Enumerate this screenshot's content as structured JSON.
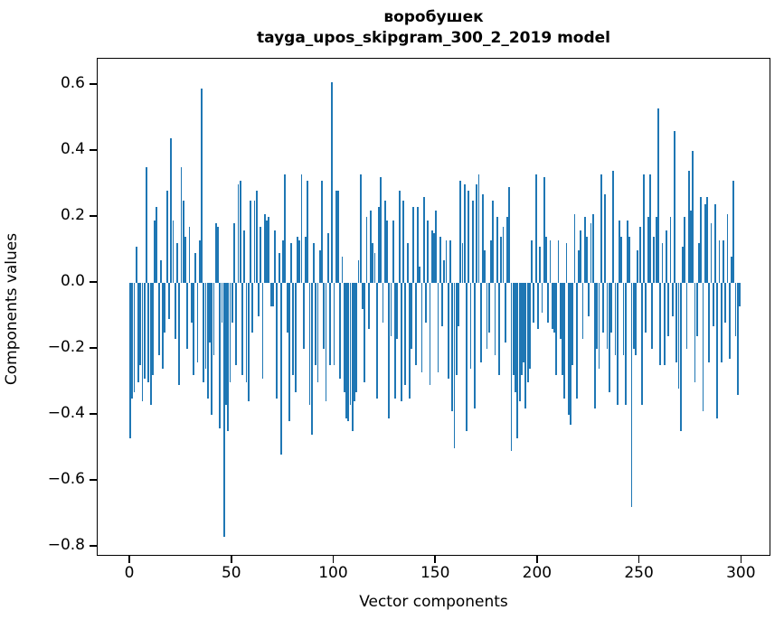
{
  "title": {
    "line1": "воробушек",
    "line2": "tayga_upos_skipgram_300_2_2019 model"
  },
  "axes": {
    "xlabel": "Vector components",
    "ylabel": "Components values",
    "x_tick_labels": [
      "0",
      "50",
      "100",
      "150",
      "200",
      "250",
      "300"
    ],
    "y_tick_labels": [
      "0.6",
      "0.4",
      "0.2",
      "0.0",
      "−0.2",
      "−0.4",
      "−0.6",
      "−0.8"
    ]
  },
  "chart_data": {
    "type": "bar",
    "title": "воробушек\ntayga_upos_skipgram_300_2_2019 model",
    "xlabel": "Vector components",
    "ylabel": "Components values",
    "bar_color": "#1f77b4",
    "n_components": 300,
    "xlim": [
      -16,
      314.5
    ],
    "ylim": [
      -0.83,
      0.68
    ],
    "x_ticks": [
      0,
      50,
      100,
      150,
      200,
      250,
      300
    ],
    "y_ticks": [
      0.6,
      0.4,
      0.2,
      0.0,
      -0.2,
      -0.4,
      -0.6,
      -0.8
    ],
    "grid": false,
    "legend": false,
    "values": [
      -0.47,
      -0.35,
      -0.33,
      0.11,
      -0.3,
      -0.25,
      -0.36,
      -0.29,
      0.35,
      -0.3,
      -0.37,
      -0.28,
      0.19,
      0.23,
      -0.22,
      0.07,
      -0.26,
      -0.15,
      0.28,
      -0.11,
      0.44,
      0.19,
      -0.17,
      0.12,
      -0.31,
      0.35,
      0.25,
      0.14,
      -0.2,
      0.17,
      -0.12,
      -0.28,
      0.09,
      -0.24,
      0.13,
      0.59,
      -0.3,
      -0.26,
      -0.35,
      -0.18,
      -0.4,
      -0.22,
      0.18,
      0.17,
      -0.44,
      -0.12,
      -0.77,
      -0.37,
      -0.45,
      -0.3,
      -0.12,
      0.18,
      -0.25,
      0.3,
      0.31,
      -0.28,
      0.16,
      -0.3,
      -0.36,
      0.25,
      -0.15,
      0.25,
      0.28,
      -0.1,
      0.17,
      -0.29,
      0.21,
      0.19,
      0.2,
      -0.07,
      -0.07,
      0.16,
      -0.35,
      0.09,
      -0.52,
      0.13,
      0.33,
      -0.15,
      -0.42,
      0.12,
      -0.28,
      -0.33,
      0.14,
      0.13,
      0.33,
      -0.2,
      0.14,
      0.31,
      -0.37,
      -0.46,
      0.12,
      -0.25,
      -0.3,
      0.1,
      0.31,
      -0.2,
      -0.36,
      0.15,
      -0.25,
      0.61,
      -0.25,
      0.28,
      0.28,
      -0.29,
      0.08,
      -0.33,
      -0.41,
      -0.42,
      -0.37,
      -0.45,
      -0.36,
      -0.33,
      0.07,
      0.33,
      -0.08,
      -0.3,
      0.2,
      -0.14,
      0.22,
      0.12,
      0.09,
      -0.35,
      0.23,
      0.32,
      -0.12,
      0.25,
      0.19,
      -0.41,
      -0.16,
      0.19,
      -0.35,
      -0.17,
      0.28,
      -0.36,
      0.25,
      -0.31,
      0.12,
      -0.35,
      -0.2,
      0.23,
      -0.25,
      0.23,
      0.05,
      -0.27,
      0.26,
      -0.12,
      0.19,
      -0.31,
      0.16,
      0.15,
      0.22,
      -0.27,
      0.14,
      -0.13,
      0.07,
      0.13,
      -0.29,
      0.13,
      -0.39,
      -0.5,
      -0.28,
      -0.13,
      0.31,
      0.12,
      0.3,
      -0.45,
      0.28,
      -0.26,
      0.25,
      -0.38,
      0.3,
      0.33,
      -0.24,
      0.27,
      0.1,
      -0.2,
      -0.15,
      0.13,
      0.25,
      -0.22,
      0.2,
      -0.28,
      0.14,
      0.17,
      -0.18,
      0.2,
      0.29,
      -0.51,
      -0.28,
      -0.33,
      -0.47,
      -0.36,
      -0.28,
      -0.24,
      -0.38,
      -0.3,
      -0.26,
      0.13,
      -0.12,
      0.33,
      -0.14,
      0.11,
      -0.09,
      0.32,
      0.14,
      -0.12,
      0.13,
      -0.14,
      -0.15,
      -0.28,
      0.13,
      -0.17,
      -0.28,
      -0.35,
      0.12,
      -0.4,
      -0.43,
      -0.25,
      0.21,
      -0.35,
      0.1,
      0.16,
      -0.17,
      0.2,
      0.14,
      -0.1,
      0.18,
      0.21,
      -0.38,
      -0.2,
      -0.26,
      0.33,
      -0.15,
      0.27,
      -0.2,
      -0.33,
      -0.15,
      0.34,
      -0.22,
      -0.37,
      0.19,
      0.14,
      -0.22,
      -0.37,
      0.19,
      0.14,
      -0.68,
      -0.2,
      -0.22,
      0.1,
      0.17,
      -0.37,
      0.33,
      -0.15,
      0.2,
      0.33,
      -0.2,
      0.14,
      0.2,
      0.53,
      -0.25,
      0.12,
      -0.25,
      0.16,
      -0.16,
      0.2,
      -0.1,
      0.46,
      -0.24,
      -0.32,
      -0.45,
      0.11,
      0.2,
      -0.2,
      0.34,
      0.22,
      0.4,
      -0.3,
      -0.16,
      0.12,
      0.26,
      -0.39,
      0.24,
      0.26,
      -0.24,
      0.18,
      -0.13,
      0.24,
      -0.41,
      0.13,
      -0.24,
      0.13,
      -0.12,
      0.21,
      -0.23,
      0.08,
      0.31,
      -0.16,
      -0.34,
      -0.07
    ]
  }
}
